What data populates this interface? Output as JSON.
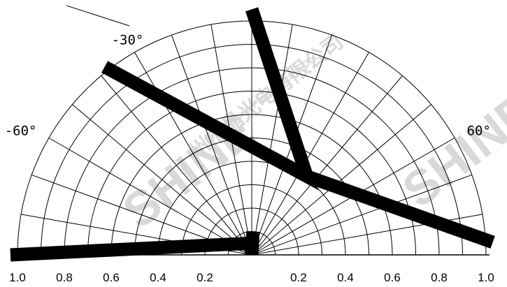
{
  "chart_data": {
    "type": "polar",
    "angle_range": [
      -90,
      90
    ],
    "radial_range": [
      0,
      1.0
    ],
    "grid": true,
    "radial_tick_labels_left": [
      "1.0",
      "0.8",
      "0.6",
      "0.4",
      "0.2"
    ],
    "radial_tick_labels_right": [
      "0.2",
      "0.4",
      "0.6",
      "0.8",
      "1.0"
    ],
    "angle_labels": [
      {
        "id": "neg60",
        "text": "-60°",
        "angle": -60
      },
      {
        "id": "pos60",
        "text": "60°",
        "angle": 60
      },
      {
        "id": "neg30",
        "text": "-30°",
        "angle": -30
      }
    ],
    "series": [
      {
        "values_theta_r": [
          [
            -90,
            1.03
          ],
          [
            -3,
            0.05
          ],
          [
            0,
            0.0
          ],
          [
            3,
            0.1
          ]
        ]
      },
      {
        "values_theta_r": [
          [
            -38,
            1.02
          ],
          [
            35,
            0.41
          ],
          [
            0,
            1.05
          ]
        ]
      },
      {
        "values_theta_r": [
          [
            35,
            0.41
          ],
          [
            87,
            1.03
          ]
        ]
      }
    ],
    "series_color": "#000000",
    "grid_color": "#000000"
  },
  "watermark": {
    "brand": "SHINE",
    "company_cn": "州市晶光电有限公司",
    "company_en": "Guangzhou Photoelectric Co."
  }
}
